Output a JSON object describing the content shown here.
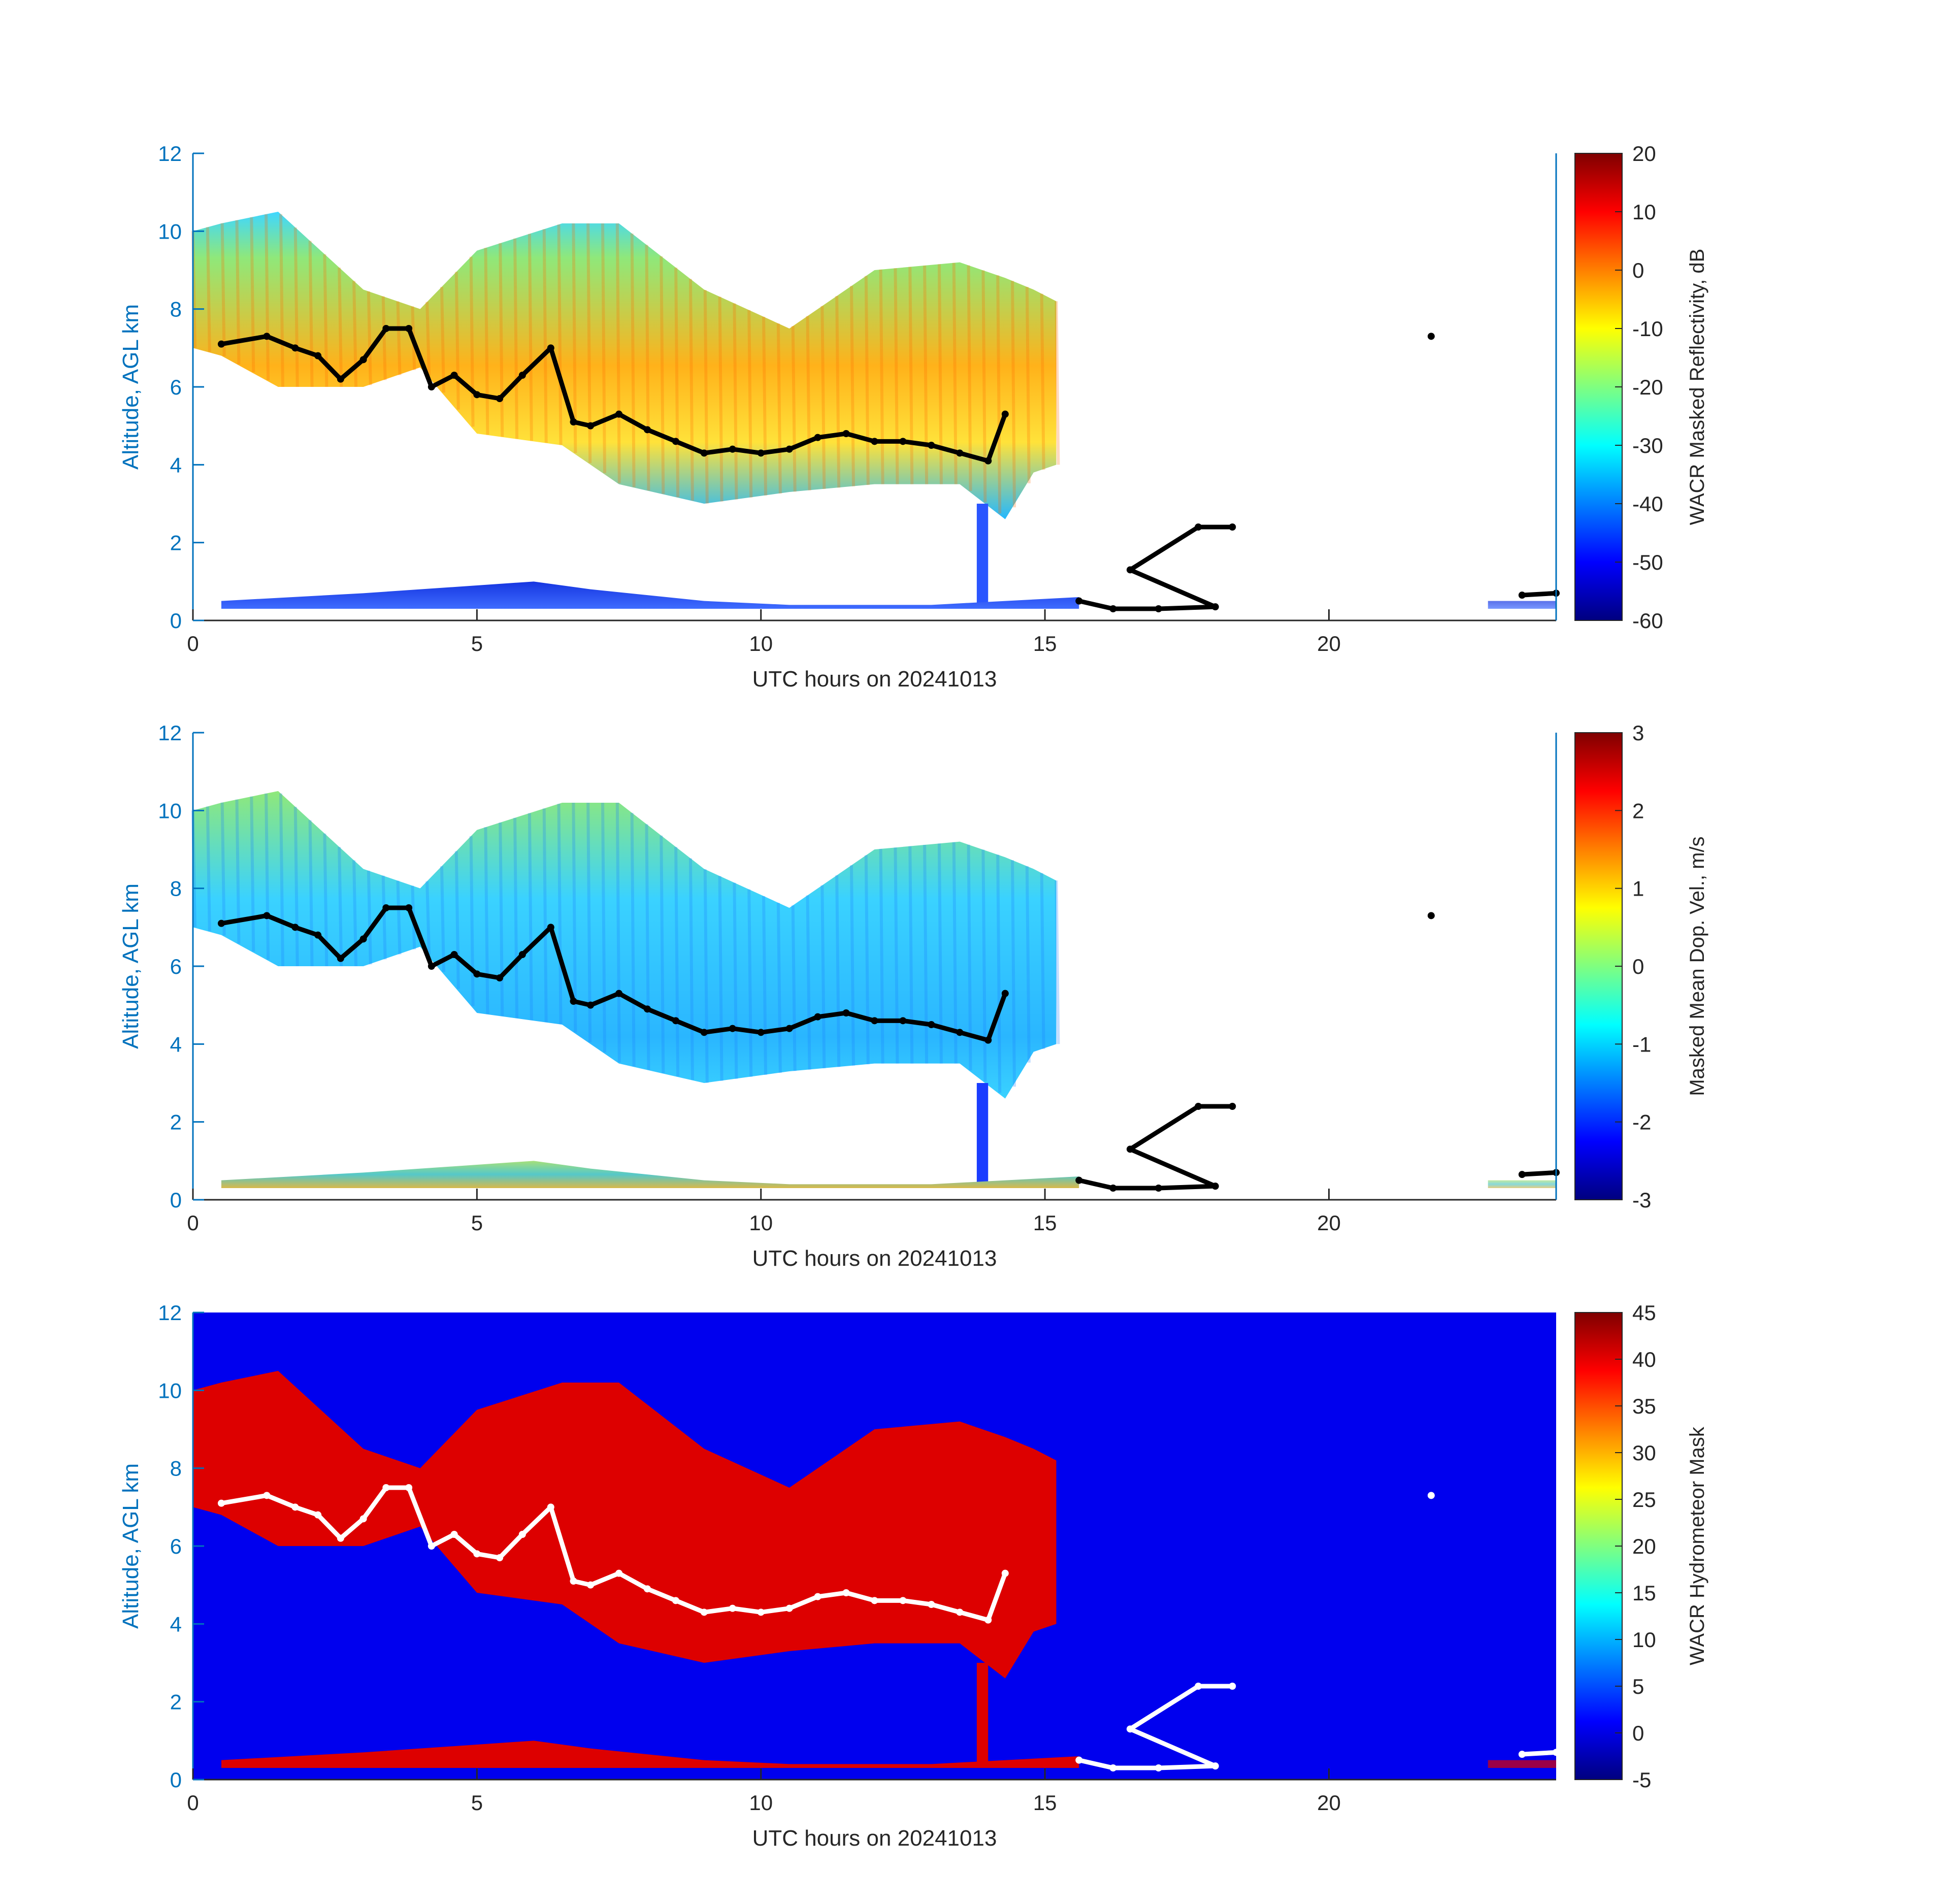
{
  "colors": {
    "axis_blue": "#0072BD",
    "axis_dark": "#262626",
    "mask_background": "#0000ee",
    "mask_cloud": "#dd0000",
    "cloud_base_black": "#000000",
    "cloud_base_white": "#ffffff"
  },
  "chart_data": [
    {
      "type": "heatmap",
      "title": "",
      "xlabel": "UTC hours on 20241013",
      "ylabel": "Altitude, AGL km",
      "xlim": [
        0,
        24
      ],
      "ylim": [
        0,
        12
      ],
      "xticks": [
        0,
        5,
        10,
        15,
        20
      ],
      "yticks": [
        0,
        2,
        4,
        6,
        8,
        10,
        12
      ],
      "grid": false,
      "colormap": "jet",
      "colorbar": {
        "label": "WACR Masked Reflectivity, dB",
        "min": -60,
        "max": 20,
        "ticks": [
          -60,
          -50,
          -40,
          -30,
          -20,
          -10,
          0,
          10,
          20
        ]
      },
      "features": [
        {
          "name": "upper_cloud",
          "t": [
            0,
            0.5,
            1.5,
            3,
            4,
            5,
            6.5,
            7.5,
            9,
            10.5,
            12,
            13.5,
            14.3,
            14.8,
            15.2
          ],
          "top_km": [
            10,
            10.2,
            10.5,
            8.5,
            8,
            9.5,
            10.2,
            10.2,
            8.5,
            7.5,
            9,
            9.2,
            8.8,
            8.5,
            8.2
          ],
          "base_km": [
            7,
            6.8,
            6,
            6,
            6.5,
            4.8,
            4.5,
            3.5,
            3.0,
            3.3,
            3.5,
            3.5,
            2.6,
            3.8,
            4.0
          ]
        },
        {
          "name": "virga_column",
          "t": [
            13.8,
            14.0
          ],
          "top_km": [
            3,
            3
          ],
          "base_km": [
            0.3,
            0.3
          ]
        },
        {
          "name": "low_level_return",
          "t": [
            0.5,
            3,
            6,
            7,
            9,
            10.5,
            13,
            15.6
          ],
          "top_km": [
            0.5,
            0.7,
            1.0,
            0.8,
            0.5,
            0.4,
            0.4,
            0.6
          ],
          "base_km": [
            0.3,
            0.3,
            0.3,
            0.3,
            0.3,
            0.3,
            0.3,
            0.3
          ]
        },
        {
          "name": "late_low_return",
          "t": [
            22.8,
            24
          ],
          "top_km": [
            0.5,
            0.5
          ],
          "base_km": [
            0.3,
            0.3
          ]
        }
      ],
      "cloud_base_points": {
        "t": [
          0.5,
          1.3,
          1.8,
          2.2,
          2.6,
          3.0,
          3.4,
          3.8,
          4.2,
          4.6,
          5.0,
          5.4,
          5.8,
          6.3,
          6.7,
          7.0,
          7.5,
          8.0,
          8.5,
          9.0,
          9.5,
          10.0,
          10.5,
          11.0,
          11.5,
          12.0,
          12.5,
          13.0,
          13.5,
          14.0,
          14.3,
          15.6,
          16.2,
          17.0,
          18.0,
          16.5,
          17.7,
          18.3,
          21.8,
          23.4,
          24
        ],
        "alt_km": [
          7.1,
          7.3,
          7.0,
          6.8,
          6.2,
          6.7,
          7.5,
          7.5,
          6.0,
          6.3,
          5.8,
          5.7,
          6.3,
          7.0,
          5.1,
          5.0,
          5.3,
          4.9,
          4.6,
          4.3,
          4.4,
          4.3,
          4.4,
          4.7,
          4.8,
          4.6,
          4.6,
          4.5,
          4.3,
          4.1,
          5.3,
          0.5,
          0.3,
          0.3,
          0.35,
          1.3,
          2.4,
          2.4,
          7.3,
          0.65,
          0.7
        ]
      }
    },
    {
      "type": "heatmap",
      "title": "",
      "xlabel": "UTC hours on 20241013",
      "ylabel": "Altitude, AGL km",
      "xlim": [
        0,
        24
      ],
      "ylim": [
        0,
        12
      ],
      "xticks": [
        0,
        5,
        10,
        15,
        20
      ],
      "yticks": [
        0,
        2,
        4,
        6,
        8,
        10,
        12
      ],
      "grid": false,
      "colormap": "jet",
      "colorbar": {
        "label": "Masked Mean Dop. Vel., m/s",
        "min": -3,
        "max": 3,
        "ticks": [
          -3,
          -2,
          -1,
          0,
          1,
          2,
          3
        ]
      },
      "features": [
        {
          "name": "upper_cloud",
          "typical_velocity_ms": -0.8
        },
        {
          "name": "low_level_return",
          "typical_velocity_ms": 0.0
        }
      ],
      "cloud_base_points": "same as panel 1"
    },
    {
      "type": "heatmap",
      "title": "",
      "xlabel": "UTC hours on 20241013",
      "ylabel": "Altitude, AGL km",
      "xlim": [
        0,
        24
      ],
      "ylim": [
        0,
        12
      ],
      "xticks": [
        0,
        5,
        10,
        15,
        20
      ],
      "yticks": [
        0,
        2,
        4,
        6,
        8,
        10,
        12
      ],
      "grid": false,
      "colormap": "jet",
      "colorbar": {
        "label": "WACR Hydrometeor Mask",
        "min": -5,
        "max": 45,
        "ticks": [
          -5,
          0,
          5,
          10,
          15,
          20,
          25,
          30,
          35,
          40,
          45
        ]
      },
      "features": [
        {
          "name": "background",
          "value": 1
        },
        {
          "name": "hydrometeor",
          "value": 40
        }
      ],
      "cloud_base_points": "same as panel 1, drawn white"
    }
  ]
}
